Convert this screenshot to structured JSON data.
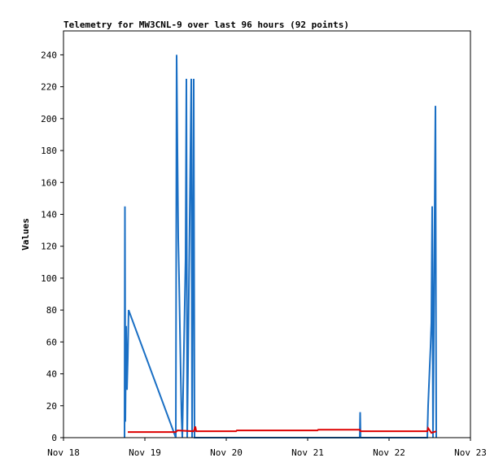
{
  "chart_data": {
    "type": "line",
    "title": "Telemetry for MW3CNL-9 over last 96 hours (92 points)",
    "y_label": "Values",
    "xlim": [
      18,
      23
    ],
    "xticks": [
      {
        "value": 18,
        "label": "Nov 18"
      },
      {
        "value": 19,
        "label": "Nov 19"
      },
      {
        "value": 20,
        "label": "Nov 20"
      },
      {
        "value": 21,
        "label": "Nov 21"
      },
      {
        "value": 22,
        "label": "Nov 22"
      },
      {
        "value": 23,
        "label": "Nov 23"
      }
    ],
    "ylim": [
      0,
      255
    ],
    "yticks": [
      0,
      20,
      40,
      60,
      80,
      100,
      120,
      140,
      160,
      180,
      200,
      220,
      240
    ],
    "series": [
      {
        "color": "#1a6fc4",
        "x": [
          18.75,
          18.755,
          18.76,
          18.77,
          18.78,
          18.79,
          18.8,
          19.38,
          19.39,
          19.4,
          19.41,
          19.42,
          19.43,
          19.44,
          19.45,
          19.46,
          19.5,
          19.51,
          19.52,
          19.57,
          19.58,
          19.59,
          19.6,
          19.61,
          21.64,
          21.645,
          21.65,
          22.47,
          22.48,
          22.5,
          22.51,
          22.52,
          22.53,
          22.54,
          22.57,
          22.58
        ],
        "values": [
          0,
          145,
          10,
          70,
          30,
          50,
          80,
          0,
          240,
          180,
          125,
          100,
          70,
          40,
          14,
          0,
          112,
          225,
          0,
          225,
          0,
          112,
          225,
          0,
          0,
          16,
          0,
          0,
          20,
          45,
          57,
          72,
          145,
          0,
          208,
          0
        ]
      },
      {
        "color": "#dd0000",
        "x": [
          18.79,
          19.38,
          19.4,
          19.6,
          19.62,
          19.63,
          20.12,
          20.13,
          21.12,
          21.13,
          21.64,
          21.65,
          22.47,
          22.48,
          22.52,
          22.58
        ],
        "values": [
          3.5,
          3.5,
          4.5,
          4,
          7,
          4,
          4,
          4.5,
          4.5,
          5,
          5,
          4,
          4,
          6,
          3,
          4
        ]
      }
    ]
  }
}
